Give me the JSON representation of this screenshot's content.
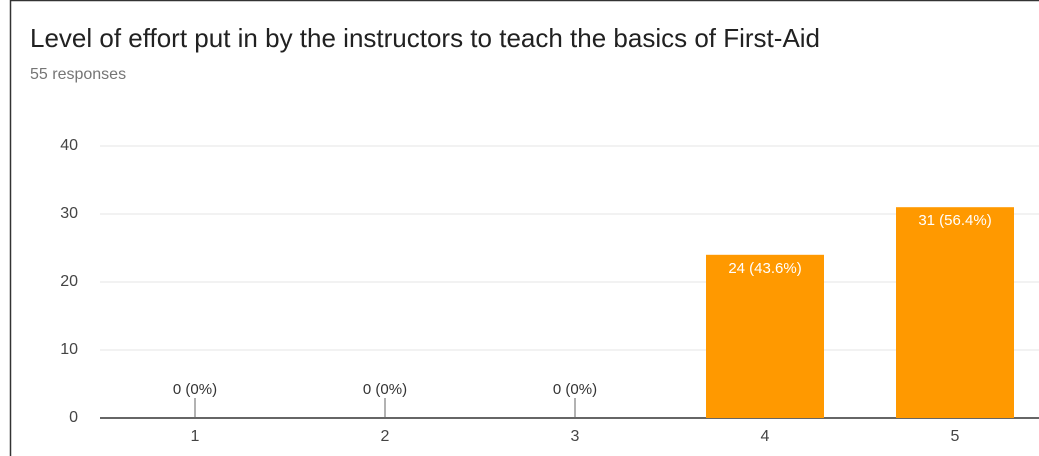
{
  "chart_data": {
    "type": "bar",
    "title": "Level of effort put in by the instructors to teach the basics of First-Aid",
    "subtitle": "55 responses",
    "categories": [
      "1",
      "2",
      "3",
      "4",
      "5"
    ],
    "values": [
      0,
      0,
      0,
      24,
      31
    ],
    "value_labels": [
      "0 (0%)",
      "0 (0%)",
      "0 (0%)",
      "24 (43.6%)",
      "31 (56.4%)"
    ],
    "color": "#ff9900",
    "ylim": [
      0,
      40
    ],
    "yticks": [
      0,
      10,
      20,
      30,
      40
    ],
    "grid": true
  }
}
